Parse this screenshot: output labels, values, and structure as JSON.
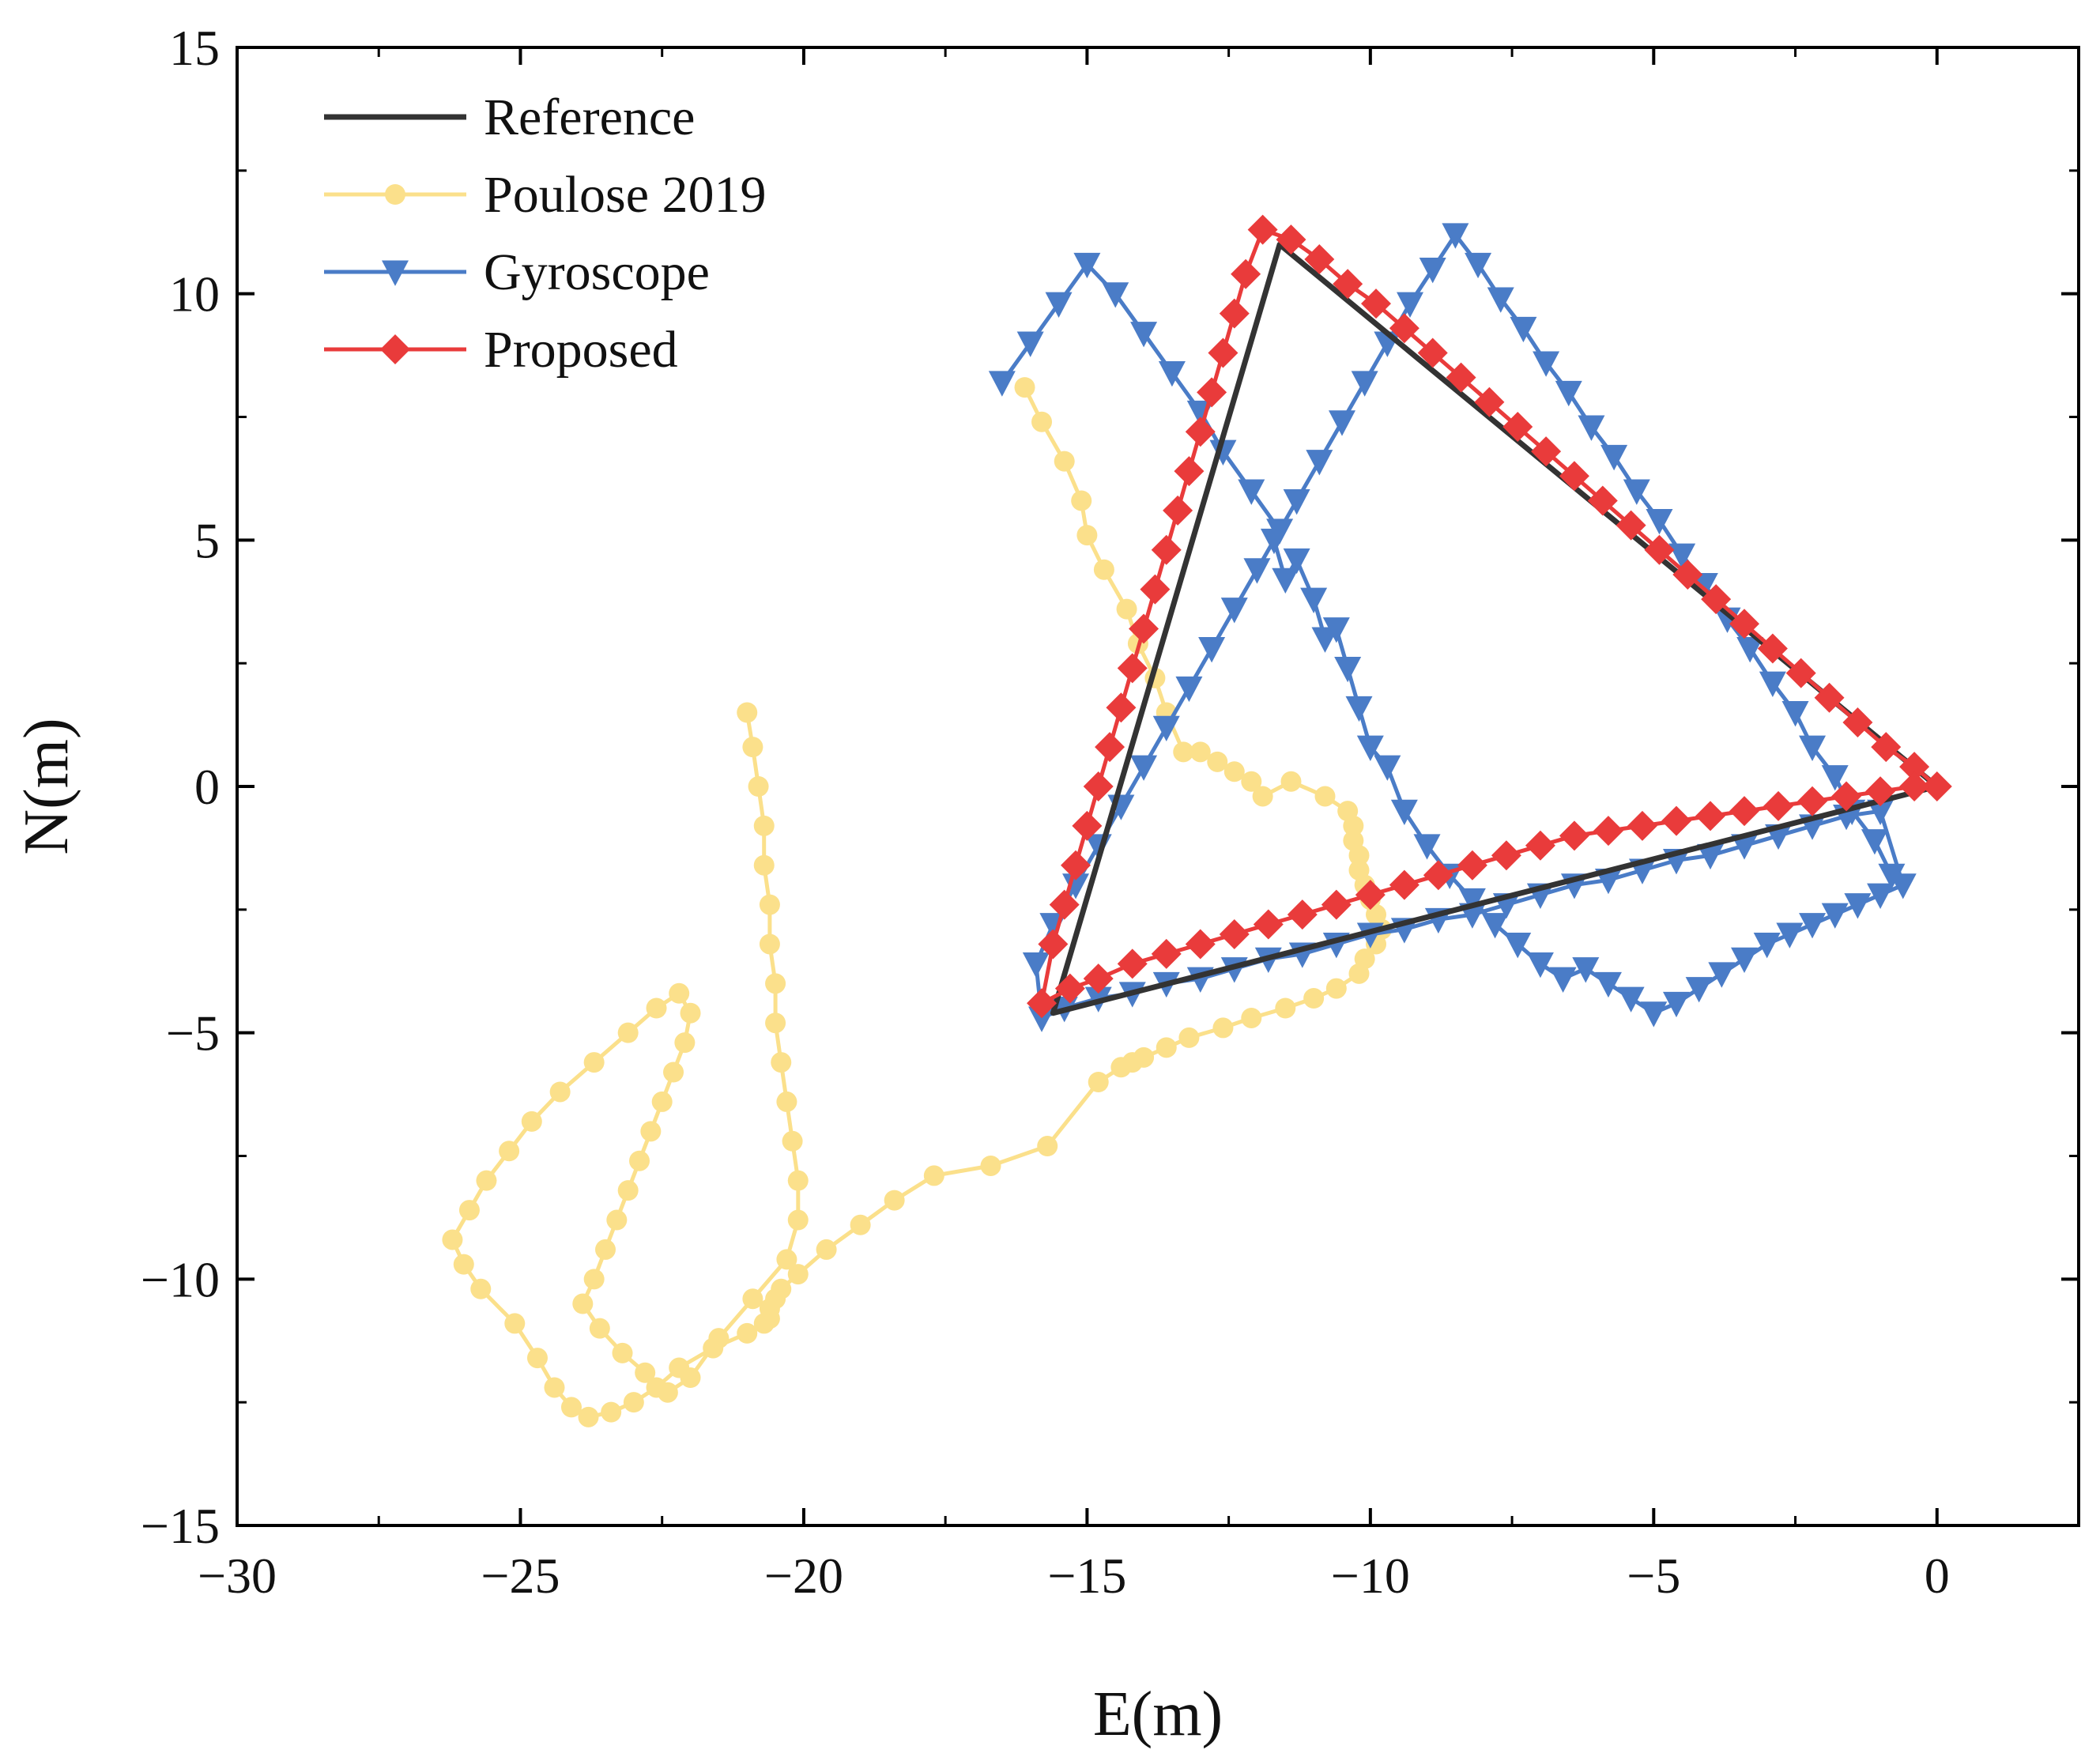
{
  "chart_data": {
    "type": "line",
    "title": "",
    "xlabel": "E(m)",
    "ylabel": "N(m)",
    "xlim": [
      -30,
      2.5
    ],
    "ylim": [
      -15,
      15
    ],
    "xticks": [
      -30,
      -25,
      -20,
      -15,
      -10,
      -5,
      0
    ],
    "yticks": [
      -15,
      -10,
      -5,
      0,
      5,
      10,
      15
    ],
    "xtick_labels": [
      "−30",
      "−25",
      "−20",
      "−15",
      "−10",
      "−5",
      "0"
    ],
    "ytick_labels": [
      "−15",
      "−10",
      "−5",
      "0",
      "5",
      "10",
      "15"
    ],
    "legend_position": "top-left",
    "series": [
      {
        "name": "Reference",
        "color": "#333333",
        "marker": "none",
        "x": [
          0,
          -11.6,
          -15.6,
          0
        ],
        "y": [
          0,
          11.0,
          -4.6,
          0
        ]
      },
      {
        "name": "Poulose 2019",
        "color": "#FBE08B",
        "marker": "circle",
        "x": [
          -16.1,
          -15.8,
          -15.4,
          -15.1,
          -15.0,
          -14.7,
          -14.3,
          -14.1,
          -13.8,
          -13.6,
          -13.3,
          -13.0,
          -12.7,
          -12.4,
          -12.1,
          -11.9,
          -11.4,
          -10.8,
          -10.4,
          -10.3,
          -10.3,
          -10.2,
          -10.2,
          -10.1,
          -10.0,
          -9.9,
          -9.8,
          -9.9,
          -10.1,
          -10.2,
          -10.6,
          -11.0,
          -11.5,
          -12.1,
          -12.6,
          -13.2,
          -13.6,
          -14.0,
          -14.2,
          -14.4,
          -14.8,
          -15.7,
          -16.7,
          -17.7,
          -18.4,
          -19.0,
          -19.6,
          -20.1,
          -20.4,
          -20.5,
          -20.6,
          -20.6,
          -20.7,
          -21.0,
          -21.6,
          -22.2,
          -22.6,
          -23.0,
          -23.4,
          -23.8,
          -24.1,
          -24.4,
          -24.7,
          -25.1,
          -25.7,
          -26.0,
          -26.2,
          -25.9,
          -25.6,
          -25.2,
          -24.8,
          -24.3,
          -23.7,
          -23.1,
          -22.6,
          -22.2,
          -22.0,
          -22.1,
          -22.3,
          -22.5,
          -22.7,
          -22.9,
          -23.1,
          -23.3,
          -23.5,
          -23.7,
          -23.9,
          -23.6,
          -23.2,
          -22.8,
          -22.4,
          -22.0,
          -21.5,
          -20.9,
          -20.3,
          -20.1,
          -20.1,
          -20.2,
          -20.3,
          -20.4,
          -20.5,
          -20.5,
          -20.6,
          -20.6,
          -20.7,
          -20.7,
          -20.8,
          -20.9,
          -21.0
        ],
        "y": [
          8.1,
          7.4,
          6.6,
          5.8,
          5.1,
          4.4,
          3.6,
          2.9,
          2.2,
          1.5,
          0.7,
          0.7,
          0.5,
          0.3,
          0.1,
          -0.2,
          0.1,
          -0.2,
          -0.5,
          -0.8,
          -1.1,
          -1.4,
          -1.7,
          -2.0,
          -2.3,
          -2.6,
          -2.9,
          -3.2,
          -3.5,
          -3.8,
          -4.1,
          -4.3,
          -4.5,
          -4.7,
          -4.9,
          -5.1,
          -5.3,
          -5.5,
          -5.6,
          -5.7,
          -6.0,
          -7.3,
          -7.7,
          -7.9,
          -8.4,
          -8.9,
          -9.4,
          -9.9,
          -10.2,
          -10.4,
          -10.6,
          -10.8,
          -10.9,
          -11.1,
          -11.4,
          -11.8,
          -12.2,
          -12.5,
          -12.7,
          -12.8,
          -12.6,
          -12.2,
          -11.6,
          -10.9,
          -10.2,
          -9.7,
          -9.2,
          -8.6,
          -8.0,
          -7.4,
          -6.8,
          -6.2,
          -5.6,
          -5.0,
          -4.5,
          -4.2,
          -4.6,
          -5.2,
          -5.8,
          -6.4,
          -7.0,
          -7.6,
          -8.2,
          -8.8,
          -9.4,
          -10.0,
          -10.5,
          -11.0,
          -11.5,
          -11.9,
          -12.3,
          -12.0,
          -11.2,
          -10.4,
          -9.6,
          -8.8,
          -8.0,
          -7.2,
          -6.4,
          -5.6,
          -4.8,
          -4.0,
          -3.2,
          -2.4,
          -1.6,
          -0.8,
          0.0,
          0.8,
          1.5
        ]
      },
      {
        "name": "Gyroscope",
        "color": "#4A7CC7",
        "marker": "triangle-down",
        "x": [
          -0.8,
          -1.1,
          -1.5,
          -1.8,
          -2.2,
          -2.5,
          -2.9,
          -3.3,
          -3.7,
          -4.1,
          -4.5,
          -4.9,
          -5.3,
          -5.7,
          -6.1,
          -6.5,
          -6.9,
          -7.3,
          -7.7,
          -8.1,
          -8.5,
          -8.9,
          -9.3,
          -9.7,
          -10.1,
          -10.5,
          -10.9,
          -11.3,
          -11.7,
          -11.5,
          -11.3,
          -11.0,
          -10.8,
          -10.6,
          -10.4,
          -10.2,
          -10.0,
          -9.7,
          -9.4,
          -9.0,
          -8.6,
          -8.2,
          -7.8,
          -7.4,
          -7.0,
          -6.6,
          -6.2,
          -5.8,
          -5.4,
          -5.0,
          -4.6,
          -4.2,
          -3.8,
          -3.4,
          -3.0,
          -2.6,
          -2.2,
          -1.8,
          -1.4,
          -1.0,
          -0.6,
          -1.0,
          -1.6,
          -2.2,
          -2.8,
          -3.4,
          -4.0,
          -4.6,
          -5.2,
          -5.8,
          -6.4,
          -7.0,
          -7.6,
          -8.2,
          -8.8,
          -9.4,
          -10.0,
          -10.6,
          -11.2,
          -11.8,
          -12.4,
          -13.0,
          -13.6,
          -14.2,
          -14.8,
          -15.4,
          -15.8,
          -15.9,
          -15.6,
          -15.2,
          -14.8,
          -14.4,
          -14.0,
          -13.6,
          -13.2,
          -12.8,
          -12.4,
          -12.0,
          -11.6,
          -12.1,
          -12.6,
          -13.0,
          -13.5,
          -14.0,
          -14.5,
          -15.0,
          -15.5,
          -16.0,
          -16.5
        ],
        "y": [
          -1.8,
          -1.1,
          -0.5,
          0.2,
          0.8,
          1.5,
          2.1,
          2.8,
          3.4,
          4.1,
          4.7,
          5.4,
          6.0,
          6.7,
          7.3,
          8.0,
          8.6,
          9.3,
          9.9,
          10.6,
          11.2,
          10.5,
          9.8,
          9.0,
          8.2,
          7.4,
          6.6,
          5.8,
          5.0,
          4.2,
          4.6,
          3.8,
          3.0,
          3.2,
          2.4,
          1.6,
          0.8,
          0.4,
          -0.5,
          -1.2,
          -1.8,
          -2.3,
          -2.8,
          -3.2,
          -3.6,
          -3.9,
          -3.7,
          -4.0,
          -4.3,
          -4.6,
          -4.4,
          -4.1,
          -3.8,
          -3.5,
          -3.2,
          -3.0,
          -2.8,
          -2.6,
          -2.4,
          -2.2,
          -2.0,
          -0.5,
          -0.6,
          -0.8,
          -1.0,
          -1.2,
          -1.4,
          -1.5,
          -1.7,
          -1.9,
          -2.0,
          -2.2,
          -2.4,
          -2.6,
          -2.7,
          -2.9,
          -3.0,
          -3.2,
          -3.4,
          -3.5,
          -3.7,
          -3.9,
          -4.0,
          -4.2,
          -4.3,
          -4.5,
          -4.7,
          -3.6,
          -2.8,
          -2.0,
          -1.2,
          -0.4,
          0.4,
          1.2,
          2.0,
          2.8,
          3.6,
          4.4,
          5.2,
          6.0,
          6.8,
          7.6,
          8.4,
          9.2,
          10.0,
          10.6,
          9.8,
          9.0,
          8.2
        ]
      },
      {
        "name": "Proposed",
        "color": "#E93B3B",
        "marker": "diamond",
        "x": [
          0,
          -0.4,
          -0.9,
          -1.4,
          -1.9,
          -2.4,
          -2.9,
          -3.4,
          -3.9,
          -4.4,
          -4.9,
          -5.4,
          -5.9,
          -6.4,
          -6.9,
          -7.4,
          -7.9,
          -8.4,
          -8.9,
          -9.4,
          -9.9,
          -10.4,
          -10.9,
          -11.4,
          -11.9,
          -12.2,
          -12.4,
          -12.6,
          -12.8,
          -13.0,
          -13.2,
          -13.4,
          -13.6,
          -13.8,
          -14.0,
          -14.2,
          -14.4,
          -14.6,
          -14.8,
          -15.0,
          -15.2,
          -15.4,
          -15.6,
          -15.8,
          -15.3,
          -14.8,
          -14.2,
          -13.6,
          -13.0,
          -12.4,
          -11.8,
          -11.2,
          -10.6,
          -10.0,
          -9.4,
          -8.8,
          -8.2,
          -7.6,
          -7.0,
          -6.4,
          -5.8,
          -5.2,
          -4.6,
          -4.0,
          -3.4,
          -2.8,
          -2.2,
          -1.6,
          -1.0,
          -0.4
        ],
        "y": [
          0,
          0.4,
          0.8,
          1.3,
          1.8,
          2.3,
          2.8,
          3.3,
          3.8,
          4.3,
          4.8,
          5.3,
          5.8,
          6.3,
          6.8,
          7.3,
          7.8,
          8.3,
          8.8,
          9.3,
          9.8,
          10.2,
          10.7,
          11.1,
          11.3,
          10.4,
          9.6,
          8.8,
          8.0,
          7.2,
          6.4,
          5.6,
          4.8,
          4.0,
          3.2,
          2.4,
          1.6,
          0.8,
          0.0,
          -0.8,
          -1.6,
          -2.4,
          -3.2,
          -4.4,
          -4.1,
          -3.9,
          -3.6,
          -3.4,
          -3.2,
          -3.0,
          -2.8,
          -2.6,
          -2.4,
          -2.2,
          -2.0,
          -1.8,
          -1.6,
          -1.4,
          -1.2,
          -1.0,
          -0.9,
          -0.8,
          -0.7,
          -0.6,
          -0.5,
          -0.4,
          -0.3,
          -0.2,
          -0.1,
          0.0
        ]
      }
    ]
  }
}
